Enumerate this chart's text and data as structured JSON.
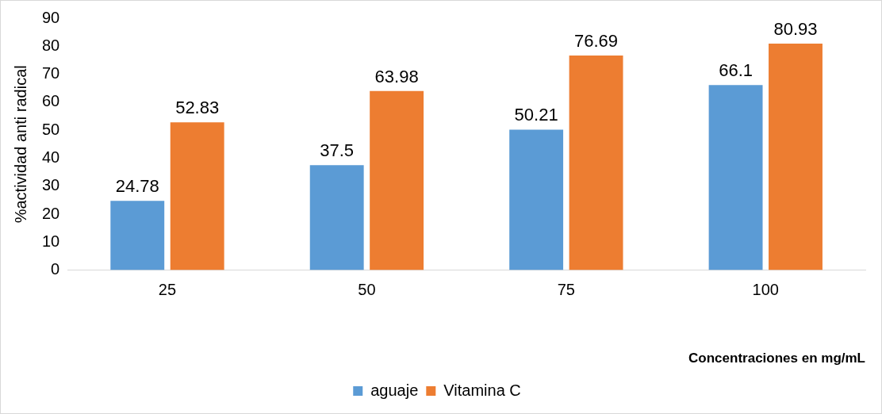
{
  "chart_data": {
    "type": "bar",
    "categories": [
      "25",
      "50",
      "75",
      "100"
    ],
    "series": [
      {
        "name": "aguaje",
        "color": "#5b9bd5",
        "values": [
          24.78,
          37.5,
          50.21,
          66.1
        ]
      },
      {
        "name": "Vitamina C",
        "color": "#ed7d31",
        "values": [
          52.83,
          63.98,
          76.69,
          80.93
        ]
      }
    ],
    "xlabel": "Concentraciones en mg/mL",
    "ylabel": "%actividad anti radical",
    "ylim": [
      0,
      90
    ],
    "yticks": [
      0,
      10,
      20,
      30,
      40,
      50,
      60,
      70,
      80,
      90
    ],
    "grid": false,
    "legend": "bottom",
    "data_labels": true
  }
}
